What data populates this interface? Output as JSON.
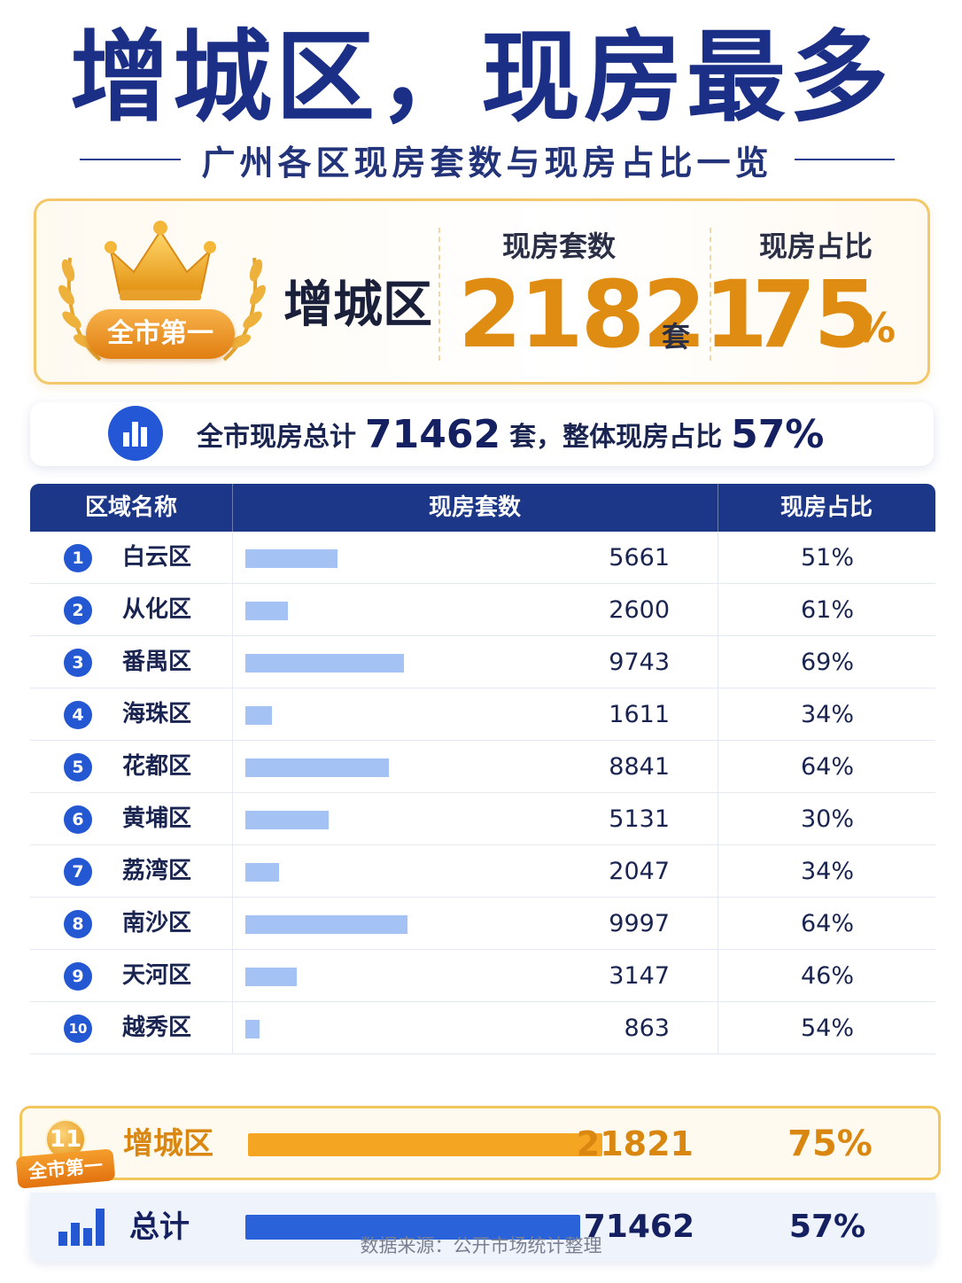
{
  "header": {
    "title": "增城区，现房最多",
    "subtitle": "广州各区现房套数与现房占比一览"
  },
  "top_card": {
    "badge": "全市第一",
    "district": "增城区",
    "count_label": "现房套数",
    "count_value": "21821",
    "count_unit": "套",
    "share_label": "现房占比",
    "share_value": "75",
    "share_unit": "%",
    "colors": {
      "accent": "#df8c12",
      "border": "#f3c86a"
    }
  },
  "summary": {
    "icon": "bar-chart-icon",
    "prefix": "全市现房总计",
    "total": "71462",
    "middle": "套，整体现房占比",
    "share": "57%"
  },
  "table": {
    "headers": [
      "区域名称",
      "现房套数",
      "现房占比"
    ],
    "highlight_tag": "全市第一",
    "total_label": "总计",
    "total_value": "71462",
    "total_pct": "57%",
    "source": "数据来源：公开市场统计整理"
  },
  "chart_data": {
    "type": "bar",
    "categories": [
      "白云区",
      "从化区",
      "番禺区",
      "海珠区",
      "花都区",
      "黄埔区",
      "荔湾区",
      "南沙区",
      "天河区",
      "越秀区",
      "增城区"
    ],
    "ranks": [
      "1",
      "2",
      "3",
      "4",
      "5",
      "6",
      "7",
      "8",
      "9",
      "10",
      "11"
    ],
    "values": [
      5661,
      2600,
      9743,
      1611,
      8841,
      5131,
      2047,
      9997,
      3147,
      863,
      21821
    ],
    "shares": [
      "51%",
      "61%",
      "69%",
      "34%",
      "64%",
      "30%",
      "34%",
      "64%",
      "46%",
      "54%",
      "75%"
    ],
    "total": 71462,
    "total_share": "57%",
    "highlight_index": 10,
    "colors": {
      "bar": "#a4c2f4",
      "highlight_bar": "#f4a623",
      "total_bar": "#2a62d9",
      "header": "#1c3787"
    }
  }
}
